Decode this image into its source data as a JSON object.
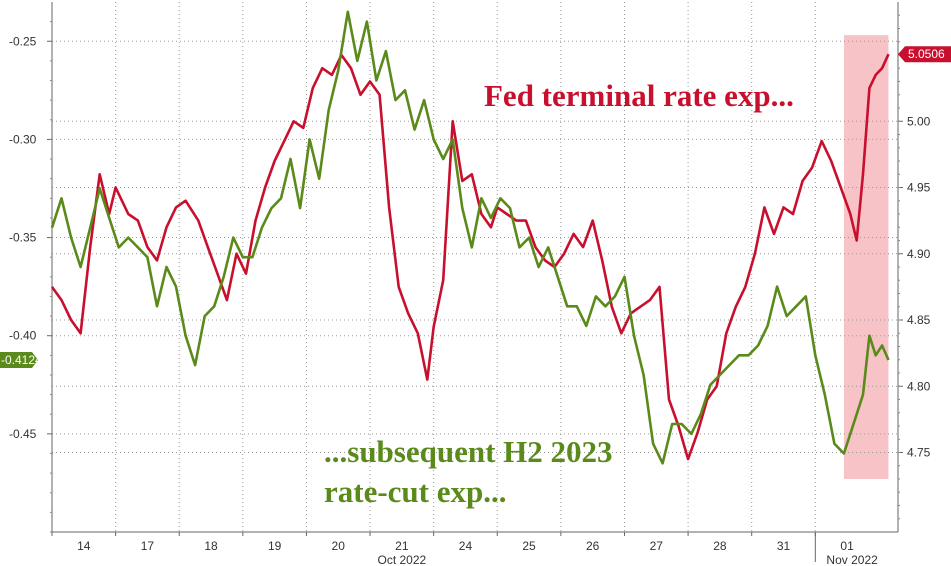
{
  "chart_data": {
    "type": "line",
    "title": "",
    "xlabel": "",
    "ylabel": "",
    "x_tick_labels": [
      "14",
      "17",
      "18",
      "19",
      "20",
      "21",
      "24",
      "25",
      "26",
      "27",
      "28",
      "31",
      "01"
    ],
    "x_sub_labels": [
      {
        "label": "Oct 2022",
        "under": "21"
      },
      {
        "label": "Nov 2022",
        "under": "01"
      }
    ],
    "x_range": [
      0,
      13.3
    ],
    "left_axis": {
      "ticks": [
        -0.25,
        -0.3,
        -0.35,
        -0.4,
        -0.45
      ],
      "tick_labels": [
        "-0.25",
        "-0.30",
        "-0.35",
        "-0.40",
        "-0.45"
      ],
      "range": [
        -0.5,
        -0.23
      ]
    },
    "right_axis": {
      "ticks": [
        5.0,
        4.95,
        4.9,
        4.85,
        4.8,
        4.75
      ],
      "tick_labels": [
        "5.00",
        "4.95",
        "4.90",
        "4.85",
        "4.80",
        "4.75"
      ],
      "range": [
        4.69,
        5.09
      ]
    },
    "grid": true,
    "highlight_range": [
      12.45,
      13.15
    ],
    "series": [
      {
        "name": "Fed terminal rate exp...",
        "axis": "right",
        "color": "#c8102e",
        "last_value_label": "5.0506",
        "x": [
          0,
          0.15,
          0.3,
          0.45,
          0.6,
          0.75,
          0.9,
          1.0,
          1.2,
          1.35,
          1.5,
          1.65,
          1.8,
          1.95,
          2.1,
          2.3,
          2.45,
          2.6,
          2.75,
          2.9,
          3.05,
          3.2,
          3.35,
          3.5,
          3.65,
          3.8,
          3.95,
          4.1,
          4.25,
          4.4,
          4.55,
          4.7,
          4.85,
          5.0,
          5.15,
          5.3,
          5.45,
          5.6,
          5.75,
          5.9,
          6.0,
          6.15,
          6.3,
          6.45,
          6.6,
          6.75,
          6.9,
          7.0,
          7.15,
          7.3,
          7.45,
          7.6,
          7.75,
          7.9,
          8.05,
          8.2,
          8.35,
          8.5,
          8.65,
          8.8,
          8.95,
          9.1,
          9.25,
          9.4,
          9.55,
          9.7,
          9.85,
          10.0,
          10.15,
          10.3,
          10.45,
          10.6,
          10.75,
          10.9,
          11.05,
          11.2,
          11.35,
          11.5,
          11.65,
          11.8,
          11.95,
          12.1,
          12.25,
          12.4,
          12.55,
          12.65,
          12.75,
          12.85,
          12.95,
          13.05,
          13.15
        ],
        "values": [
          4.875,
          4.865,
          4.85,
          4.84,
          4.905,
          4.96,
          4.93,
          4.95,
          4.93,
          4.925,
          4.905,
          4.895,
          4.92,
          4.935,
          4.94,
          4.925,
          4.905,
          4.885,
          4.865,
          4.9,
          4.885,
          4.925,
          4.95,
          4.97,
          4.985,
          5.0,
          4.995,
          5.025,
          5.04,
          5.035,
          5.05,
          5.04,
          5.02,
          5.03,
          5.02,
          4.935,
          4.875,
          4.855,
          4.84,
          4.805,
          4.845,
          4.88,
          5.0,
          4.955,
          4.96,
          4.93,
          4.92,
          4.935,
          4.93,
          4.925,
          4.925,
          4.905,
          4.895,
          4.89,
          4.9,
          4.915,
          4.905,
          4.925,
          4.895,
          4.86,
          4.84,
          4.855,
          4.86,
          4.865,
          4.875,
          4.79,
          4.77,
          4.745,
          4.765,
          4.79,
          4.8,
          4.84,
          4.86,
          4.875,
          4.9,
          4.935,
          4.915,
          4.935,
          4.93,
          4.955,
          4.965,
          4.985,
          4.97,
          4.95,
          4.93,
          4.91,
          4.96,
          5.025,
          5.035,
          5.04,
          5.0506
        ]
      },
      {
        "name": "...subsequent H2 2023 rate-cut exp...",
        "axis": "left",
        "color": "#5a8a1a",
        "last_value_label": "-0.4124",
        "x": [
          0,
          0.15,
          0.3,
          0.45,
          0.6,
          0.75,
          0.9,
          1.05,
          1.2,
          1.35,
          1.5,
          1.65,
          1.8,
          1.95,
          2.1,
          2.25,
          2.4,
          2.55,
          2.7,
          2.85,
          3.0,
          3.15,
          3.3,
          3.45,
          3.6,
          3.75,
          3.9,
          4.05,
          4.2,
          4.35,
          4.5,
          4.65,
          4.8,
          4.95,
          5.1,
          5.25,
          5.4,
          5.55,
          5.7,
          5.85,
          6.0,
          6.15,
          6.3,
          6.45,
          6.6,
          6.75,
          6.9,
          7.05,
          7.2,
          7.35,
          7.5,
          7.65,
          7.8,
          7.95,
          8.1,
          8.25,
          8.4,
          8.55,
          8.7,
          8.85,
          9.0,
          9.15,
          9.3,
          9.45,
          9.6,
          9.75,
          9.9,
          10.05,
          10.2,
          10.35,
          10.5,
          10.65,
          10.8,
          10.95,
          11.1,
          11.25,
          11.4,
          11.55,
          11.7,
          11.85,
          12.0,
          12.15,
          12.3,
          12.45,
          12.55,
          12.65,
          12.75,
          12.85,
          12.95,
          13.05,
          13.15
        ],
        "values": [
          -0.345,
          -0.33,
          -0.35,
          -0.365,
          -0.345,
          -0.325,
          -0.34,
          -0.355,
          -0.35,
          -0.355,
          -0.36,
          -0.385,
          -0.365,
          -0.375,
          -0.4,
          -0.415,
          -0.39,
          -0.385,
          -0.37,
          -0.35,
          -0.36,
          -0.36,
          -0.345,
          -0.335,
          -0.33,
          -0.31,
          -0.335,
          -0.3,
          -0.32,
          -0.285,
          -0.265,
          -0.235,
          -0.26,
          -0.24,
          -0.27,
          -0.255,
          -0.28,
          -0.275,
          -0.295,
          -0.28,
          -0.3,
          -0.31,
          -0.3,
          -0.335,
          -0.355,
          -0.33,
          -0.34,
          -0.33,
          -0.335,
          -0.355,
          -0.35,
          -0.365,
          -0.355,
          -0.37,
          -0.385,
          -0.385,
          -0.395,
          -0.38,
          -0.385,
          -0.38,
          -0.37,
          -0.4,
          -0.42,
          -0.455,
          -0.465,
          -0.445,
          -0.445,
          -0.45,
          -0.44,
          -0.425,
          -0.42,
          -0.415,
          -0.41,
          -0.41,
          -0.405,
          -0.395,
          -0.375,
          -0.39,
          -0.385,
          -0.38,
          -0.41,
          -0.43,
          -0.455,
          -0.46,
          -0.45,
          -0.44,
          -0.43,
          -0.4,
          -0.41,
          -0.405,
          -0.4124
        ]
      }
    ],
    "annotations": [
      {
        "text": "Fed terminal rate exp...",
        "color": "#c8102e"
      },
      {
        "text": "...subsequent H2 2023",
        "color": "#5a8a1a"
      },
      {
        "text": "rate-cut exp...",
        "color": "#5a8a1a"
      }
    ]
  }
}
